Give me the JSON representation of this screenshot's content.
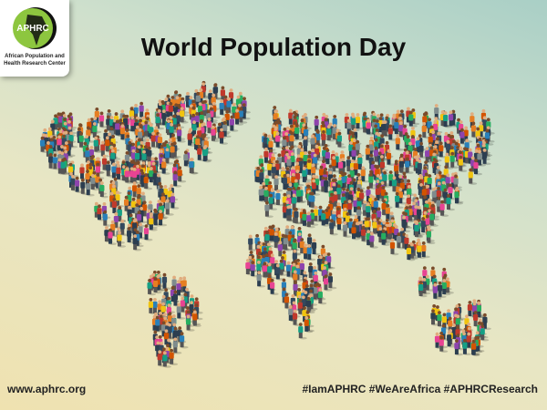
{
  "logo": {
    "acronym": "APHRC",
    "name": "African Population and Health Research Center"
  },
  "title": "World Population Day",
  "footer": {
    "url": "www.aphrc.org",
    "hashtags": "#IamAPHRC #WeAreAfrica #APHRCResearch"
  },
  "colors": {
    "logo_green": "#8dc63f",
    "background_top": "#a9cfc6",
    "background_bottom": "#efe2b0"
  }
}
